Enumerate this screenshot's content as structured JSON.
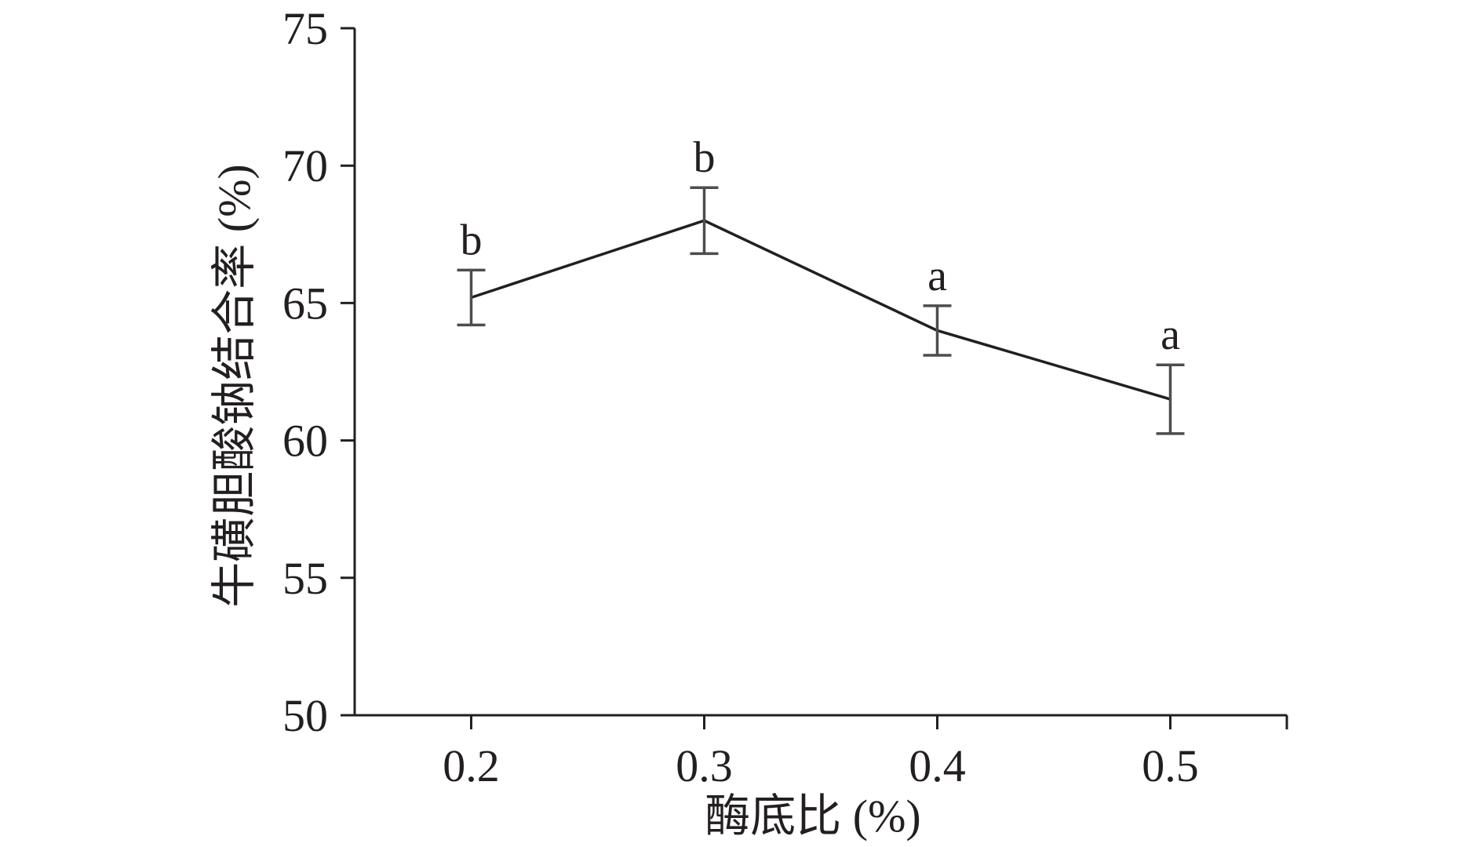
{
  "chart_data": {
    "type": "line",
    "xlabel": "酶底比 (%)",
    "ylabel": "牛磺胆酸钠结合率 (%)",
    "x": [
      0.2,
      0.3,
      0.4,
      0.5
    ],
    "x_tick_labels": [
      "0.2",
      "0.3",
      "0.4",
      "0.5"
    ],
    "xlim": [
      0.15,
      0.55
    ],
    "ylim": [
      50,
      75
    ],
    "y_ticks": [
      50,
      55,
      60,
      65,
      70,
      75
    ],
    "y_tick_labels": [
      "50",
      "55",
      "60",
      "65",
      "70",
      "75"
    ],
    "series": [
      {
        "values": [
          65.2,
          68.0,
          64.0,
          61.5
        ],
        "error": [
          1.0,
          1.2,
          0.9,
          1.25
        ],
        "significance": [
          "b",
          "b",
          "a",
          "a"
        ]
      }
    ],
    "grid": false,
    "colors": {
      "line": "#231f20",
      "errorbar": "#4d4d4f",
      "axis": "#231f20"
    }
  }
}
